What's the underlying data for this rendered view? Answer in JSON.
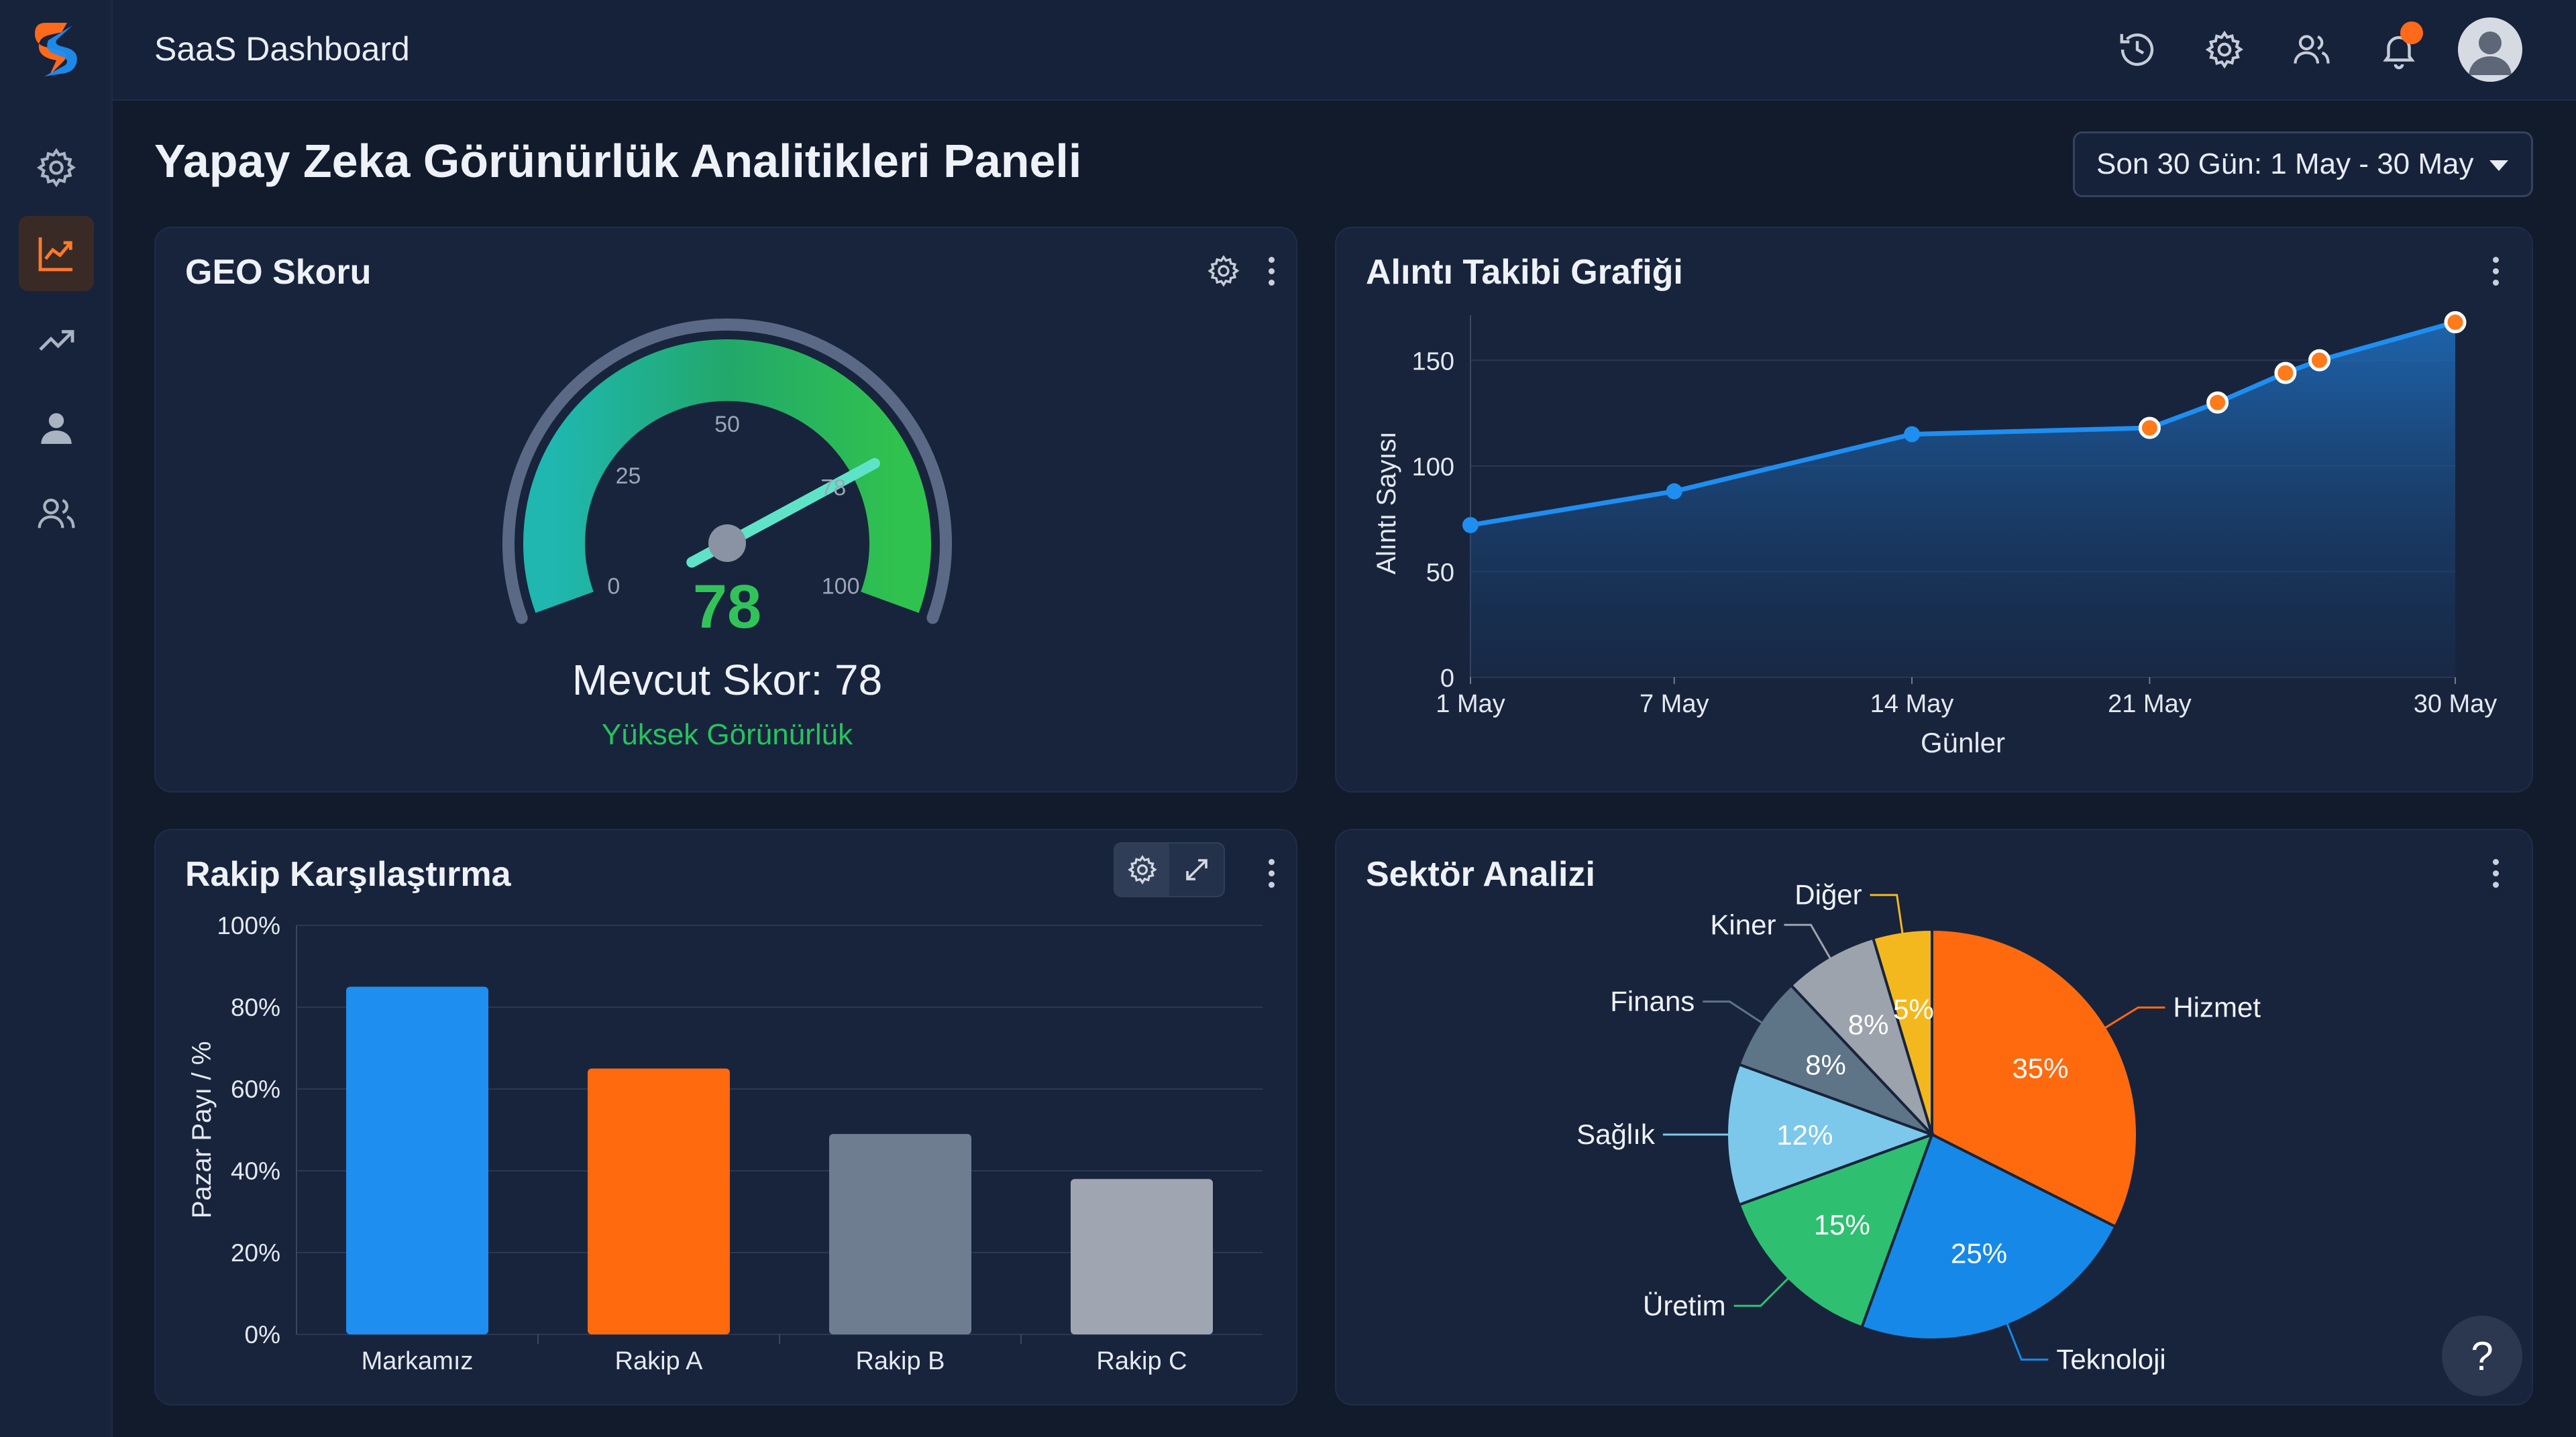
{
  "app": {
    "title": "SaaS Dashboard"
  },
  "sidebar": {
    "items": [
      {
        "icon": "gear-icon"
      },
      {
        "icon": "line-chart-icon",
        "active": true
      },
      {
        "icon": "trend-icon"
      },
      {
        "icon": "user-icon"
      },
      {
        "icon": "users-icon"
      }
    ]
  },
  "topbar": {
    "icons": [
      "history-icon",
      "gear-icon",
      "users-icon",
      "bell-icon",
      "avatar"
    ],
    "notification_color": "#ff6a1a"
  },
  "page": {
    "title": "Yapay Zeka Görünürlük Analitikleri Paneli"
  },
  "date_filter": {
    "value": "Son 30 Gün: 1 May - 30 May"
  },
  "geo_card": {
    "title": "GEO Skoru",
    "score": "78",
    "current_label": "Mevcut Skor: 78",
    "status": "Yüksek Görünürlük",
    "ticks": [
      "0",
      "25",
      "50",
      "78",
      "100"
    ],
    "status_color": "#27c25e"
  },
  "citation_card": {
    "title": "Alıntı Takibi Grafiği"
  },
  "competitor_card": {
    "title": "Rakip Karşılaştırma"
  },
  "sector_card": {
    "title": "Sektör Analizi"
  },
  "help": {
    "label": "?"
  },
  "chart_data": [
    {
      "type": "gauge",
      "value": 78,
      "min": 0,
      "max": 100,
      "tick_labels": [
        "0",
        "25",
        "50",
        "78",
        "100"
      ]
    },
    {
      "type": "area",
      "title": "Alıntı Takibi Grafiği",
      "xlabel": "Günler",
      "ylabel": "Alıntı Sayısı",
      "ylim": [
        0,
        165
      ],
      "y_ticks": [
        "0",
        "50",
        "100",
        "150"
      ],
      "x_ticks": [
        "1 May",
        "7 May",
        "14 May",
        "21 May",
        "30 May"
      ],
      "points": [
        {
          "day": 1,
          "value": 72
        },
        {
          "day": 7,
          "value": 88
        },
        {
          "day": 14,
          "value": 115
        },
        {
          "day": 21,
          "value": 118
        },
        {
          "day": 23,
          "value": 130
        },
        {
          "day": 25,
          "value": 144
        },
        {
          "day": 26,
          "value": 150
        },
        {
          "day": 30,
          "value": 168
        }
      ],
      "highlighted_from_day": 21,
      "line_color": "#1f8ef1",
      "highlight_color": "#ff7a1a"
    },
    {
      "type": "bar",
      "title": "Rakip Karşılaştırma",
      "ylabel": "Pazar Payı / %",
      "ylim": [
        0,
        100
      ],
      "y_ticks": [
        "0%",
        "20%",
        "40%",
        "60%",
        "80%",
        "100%"
      ],
      "categories": [
        "Markamız",
        "Rakip A",
        "Rakip B",
        "Rakip C"
      ],
      "values": [
        85,
        65,
        49,
        38
      ],
      "colors": [
        "#1f8ef1",
        "#ff6a0f",
        "#6f7d90",
        "#9fa6b2"
      ]
    },
    {
      "type": "pie",
      "title": "Sektör Analizi",
      "slices": [
        {
          "label": "Hizmet",
          "value": 35,
          "text": "35%",
          "color": "#ff6a0f"
        },
        {
          "label": "Teknoloji",
          "value": 25,
          "text": "25%",
          "color": "#1689e8"
        },
        {
          "label": "Üretim",
          "value": 15,
          "text": "15%",
          "color": "#2fbf71"
        },
        {
          "label": "Sağlık",
          "value": 12,
          "text": "12%",
          "color": "#7cc8ea"
        },
        {
          "label": "Finans",
          "value": 8,
          "text": "8%",
          "color": "#5e7487"
        },
        {
          "label": "Kiner",
          "value": 8,
          "text": "8%",
          "color": "#9ca3ad"
        },
        {
          "label": "Diğer",
          "value": 5,
          "text": "5%",
          "color": "#f4b81f"
        }
      ]
    }
  ]
}
